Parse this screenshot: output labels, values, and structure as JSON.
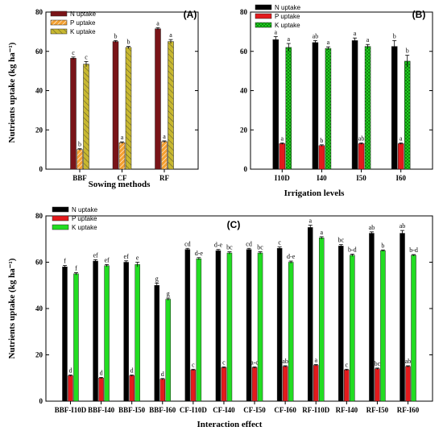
{
  "figure": {
    "ylabel": "Nutrients uptake (kg ha⁻¹)"
  },
  "chart_data": [
    {
      "id": "A",
      "type": "bar",
      "panel_label": "(A)",
      "xlabel": "Sowing methods",
      "ylabel": "Nutrients uptake (kg ha⁻¹)",
      "ylim": [
        0,
        80
      ],
      "yticks": [
        0,
        20,
        40,
        60,
        80
      ],
      "categories": [
        "BBF",
        "CF",
        "RF"
      ],
      "legend_position": "top-left",
      "series": [
        {
          "name": "N uptake",
          "color": "#7a1418",
          "pattern": "solid",
          "values": [
            56.5,
            65.0,
            71.5
          ],
          "errors": [
            0.6,
            0.5,
            0.6
          ],
          "letters": [
            "c",
            "b",
            "a"
          ]
        },
        {
          "name": "P uptake",
          "color": "#f4a030",
          "pattern": "diag",
          "values": [
            10.0,
            13.5,
            14.0
          ],
          "errors": [
            0.4,
            0.4,
            0.4
          ],
          "letters": [
            "b",
            "a",
            "a"
          ]
        },
        {
          "name": "K uptake",
          "color": "#c8b830",
          "pattern": "hatch",
          "values": [
            53.5,
            62.0,
            65.0
          ],
          "errors": [
            1.3,
            0.5,
            1.0
          ],
          "letters": [
            "c",
            "b",
            "a"
          ]
        }
      ]
    },
    {
      "id": "B",
      "type": "bar",
      "panel_label": "(B)",
      "xlabel": "Irrigation levels",
      "ylabel": "",
      "ylim": [
        0,
        80
      ],
      "yticks": [
        0,
        20,
        40,
        60,
        80
      ],
      "categories": [
        "I10D",
        "I40",
        "I50",
        "I60"
      ],
      "legend_position": "top-left",
      "series": [
        {
          "name": "N uptake",
          "color": "#000000",
          "pattern": "solid",
          "values": [
            66.0,
            64.5,
            65.5,
            62.5
          ],
          "errors": [
            1.5,
            1.0,
            1.3,
            3.0
          ],
          "letters": [
            "a",
            "ab",
            "a",
            "b"
          ]
        },
        {
          "name": "P uptake",
          "color": "#e31a1c",
          "pattern": "solid",
          "values": [
            13.0,
            12.0,
            13.0,
            13.0
          ],
          "errors": [
            0.4,
            0.4,
            0.4,
            0.4
          ],
          "letters": [
            "a",
            "b",
            "ab",
            "a"
          ]
        },
        {
          "name": "K uptake",
          "color": "#22dd22",
          "pattern": "cross",
          "values": [
            62.0,
            61.5,
            62.5,
            55.0
          ],
          "errors": [
            2.0,
            0.8,
            1.0,
            3.0
          ],
          "letters": [
            "a",
            "a",
            "a",
            "b"
          ]
        }
      ]
    },
    {
      "id": "C",
      "type": "bar",
      "panel_label": "(C)",
      "xlabel": "Interaction effect",
      "ylabel": "Nutrients uptake (kg ha⁻¹)",
      "ylim": [
        0,
        80
      ],
      "yticks": [
        0,
        20,
        40,
        60,
        80
      ],
      "categories": [
        "BBF-I10D",
        "BBF-I40",
        "BBF-I50",
        "BBF-I60",
        "CF-I10D",
        "CF-I40",
        "CF-I50",
        "CF-I60",
        "RF-I10D",
        "RF-I40",
        "RF-I50",
        "RF-I60"
      ],
      "legend_position": "top-left",
      "series": [
        {
          "name": "N uptake",
          "color": "#000000",
          "pattern": "solid",
          "values": [
            58,
            60.5,
            60,
            50,
            65.5,
            65,
            65.5,
            66,
            75,
            67,
            72.5,
            72.5
          ],
          "errors": [
            0.6,
            0.6,
            0.6,
            1.0,
            0.5,
            0.5,
            0.5,
            0.6,
            1.0,
            0.6,
            0.6,
            1.2
          ],
          "letters": [
            "f",
            "ef",
            "ef",
            "g",
            "cd",
            "d-e",
            "cd",
            "c",
            "a",
            "bc",
            "ab",
            "ab"
          ]
        },
        {
          "name": "P uptake",
          "color": "#e31a1c",
          "pattern": "solid",
          "values": [
            11,
            10,
            11,
            9.5,
            13.5,
            14.5,
            14.5,
            15,
            15.5,
            13.5,
            14,
            15
          ],
          "errors": [
            0.3,
            0.3,
            0.3,
            0.3,
            0.3,
            0.3,
            0.3,
            0.3,
            0.3,
            0.3,
            0.3,
            0.3
          ],
          "letters": [
            "d",
            "d",
            "d",
            "d",
            "c",
            "c",
            "a-c",
            "ab",
            "a",
            "c",
            "bc",
            "ab"
          ]
        },
        {
          "name": "K uptake",
          "color": "#22dd22",
          "pattern": "solid",
          "values": [
            55,
            58.5,
            59,
            44,
            61.5,
            64,
            64,
            60,
            70.5,
            63,
            65,
            63
          ],
          "errors": [
            0.5,
            0.5,
            1.0,
            0.5,
            0.5,
            0.5,
            0.5,
            0.5,
            0.5,
            0.5,
            0.3,
            0.3
          ],
          "letters": [
            "f",
            "ef",
            "e",
            "g",
            "d-e",
            "bc",
            "bc",
            "d-e",
            "a",
            "b-d",
            "b",
            "b-d"
          ]
        }
      ]
    }
  ]
}
